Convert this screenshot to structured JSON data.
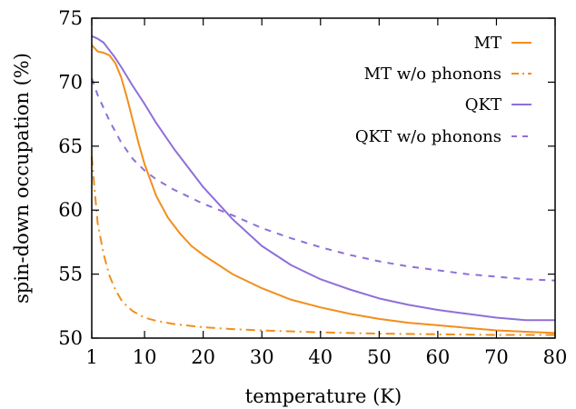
{
  "chart_data": {
    "type": "line",
    "xlabel": "temperature (K)",
    "ylabel": "spin-down occupation (%)",
    "xlim": [
      1,
      80
    ],
    "ylim": [
      50,
      75
    ],
    "xticks": [
      1,
      10,
      20,
      30,
      40,
      50,
      60,
      70,
      80
    ],
    "yticks": [
      50,
      55,
      60,
      65,
      70,
      75
    ],
    "grid": false,
    "legend_position": "top-right",
    "series": [
      {
        "name": "MT",
        "color": "#f28e1c",
        "dash": "solid",
        "x": [
          1,
          2,
          3,
          4,
          5,
          6,
          7,
          8,
          9,
          10,
          12,
          14,
          16,
          18,
          20,
          25,
          30,
          35,
          40,
          45,
          50,
          55,
          60,
          65,
          70,
          75,
          80
        ],
        "y": [
          72.9,
          72.4,
          72.3,
          72.1,
          71.5,
          70.4,
          68.8,
          67.0,
          65.2,
          63.6,
          61.1,
          59.4,
          58.2,
          57.2,
          56.5,
          55.0,
          53.9,
          53.0,
          52.4,
          51.9,
          51.5,
          51.2,
          51.0,
          50.8,
          50.6,
          50.5,
          50.4
        ]
      },
      {
        "name": "MT w/o phonons",
        "color": "#f28e1c",
        "dash": "dashdot",
        "x": [
          1,
          1.5,
          2,
          3,
          4,
          5,
          6,
          7,
          8,
          10,
          12,
          15,
          20,
          25,
          30,
          40,
          50,
          60,
          70,
          80
        ],
        "y": [
          64.2,
          61.5,
          59.0,
          56.6,
          54.9,
          53.8,
          53.0,
          52.5,
          52.1,
          51.6,
          51.35,
          51.1,
          50.85,
          50.7,
          50.6,
          50.45,
          50.35,
          50.3,
          50.25,
          50.25
        ]
      },
      {
        "name": "QKT",
        "color": "#8f6fd9",
        "dash": "solid",
        "x": [
          1,
          2,
          3,
          4,
          5,
          6,
          8,
          10,
          12,
          15,
          20,
          25,
          30,
          35,
          40,
          45,
          50,
          55,
          60,
          65,
          70,
          75,
          80
        ],
        "y": [
          73.6,
          73.4,
          73.1,
          72.5,
          71.9,
          71.2,
          69.7,
          68.3,
          66.8,
          64.8,
          61.8,
          59.3,
          57.2,
          55.7,
          54.6,
          53.8,
          53.1,
          52.6,
          52.2,
          51.9,
          51.6,
          51.4,
          51.4
        ]
      },
      {
        "name": "QKT w/o phonons",
        "color": "#8f6fd9",
        "dash": "dashed",
        "x": [
          1,
          2,
          4,
          6,
          8,
          10,
          12,
          15,
          20,
          25,
          30,
          35,
          40,
          45,
          50,
          55,
          60,
          65,
          70,
          75,
          80
        ],
        "y": [
          70.3,
          69.0,
          67.0,
          65.3,
          64.0,
          63.1,
          62.4,
          61.6,
          60.5,
          59.6,
          58.6,
          57.8,
          57.1,
          56.5,
          56.0,
          55.6,
          55.3,
          55.0,
          54.8,
          54.6,
          54.5
        ]
      }
    ]
  }
}
